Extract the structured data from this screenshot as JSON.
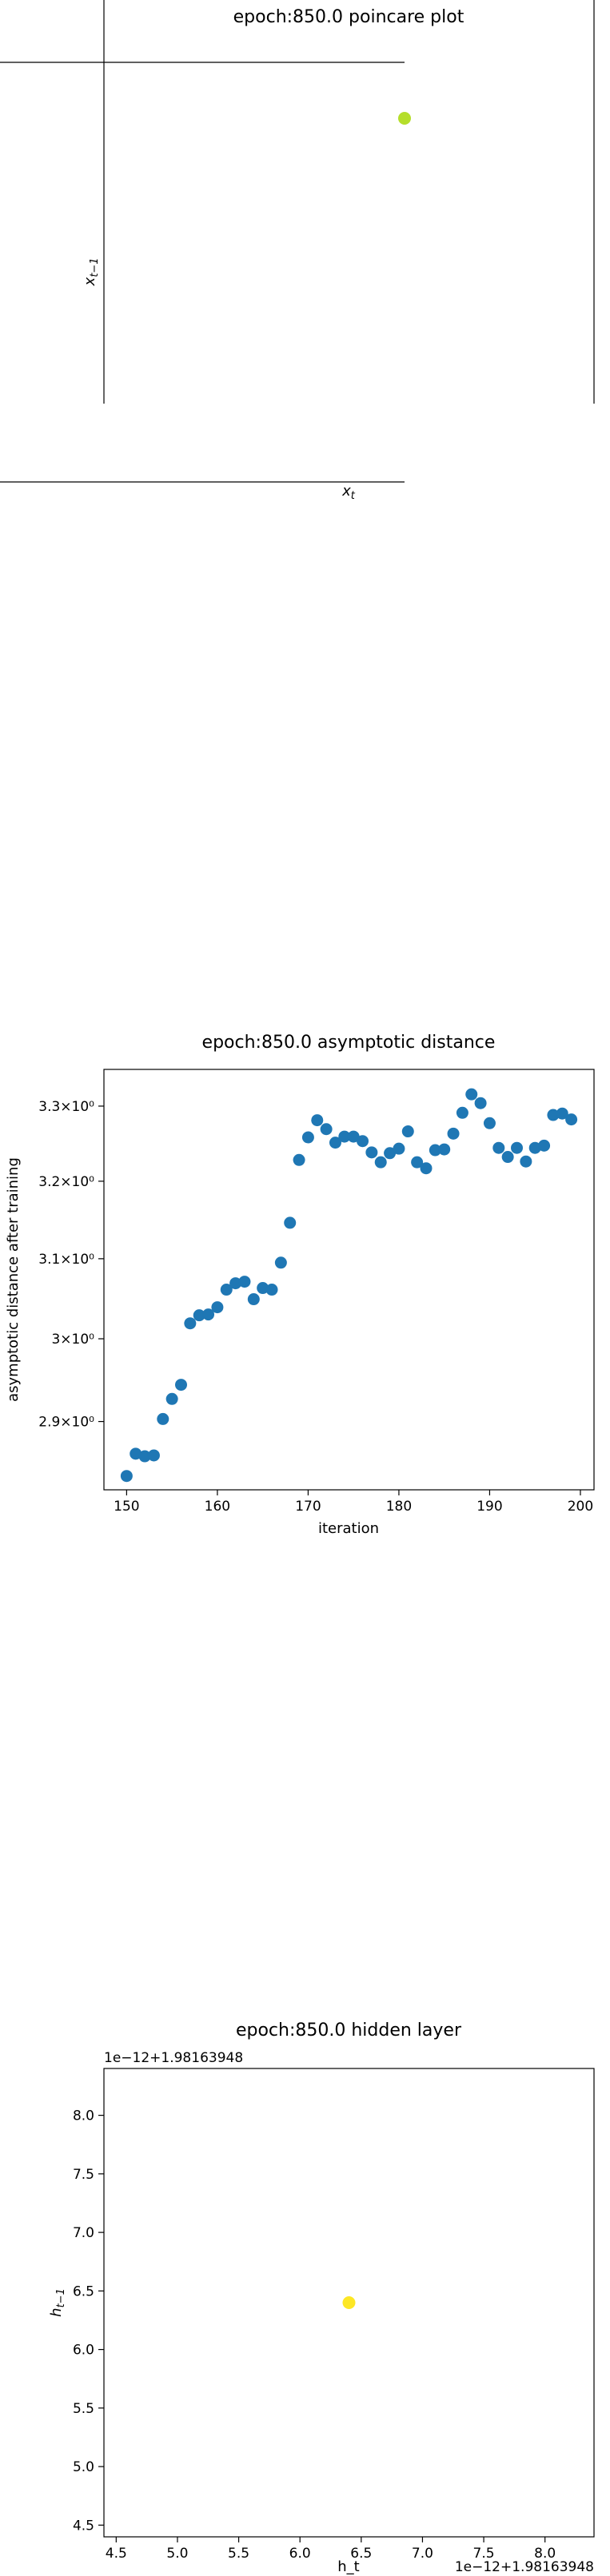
{
  "chart_data": [
    {
      "type": "scatter",
      "title": "epoch:850.0 poincare plot",
      "xlabel": "x_t",
      "ylabel": "x_{t-1}",
      "points": [
        {
          "x": 1.0,
          "y": 1.0
        }
      ],
      "point_color": "#b5de2b",
      "grid": false
    },
    {
      "type": "scatter",
      "title": "epoch:850.0 asymptotic distance",
      "xlabel": "iteration",
      "ylabel": "asymptotic distance after training",
      "yscale": "log",
      "xlim": [
        147.5,
        201.5
      ],
      "ylim": [
        2.82,
        3.35
      ],
      "xticks": [
        150,
        160,
        170,
        180,
        190,
        200
      ],
      "yticks": [
        {
          "value": 2.9,
          "label": "2.9×10⁰"
        },
        {
          "value": 3.0,
          "label": "3×10⁰"
        },
        {
          "value": 3.1,
          "label": "3.1×10⁰"
        },
        {
          "value": 3.2,
          "label": "3.2×10⁰"
        },
        {
          "value": 3.3,
          "label": "3.3×10⁰"
        }
      ],
      "point_color": "#1f77b4",
      "grid": false,
      "x": [
        150,
        151,
        152,
        153,
        154,
        155,
        156,
        157,
        158,
        159,
        160,
        161,
        162,
        163,
        164,
        165,
        166,
        167,
        168,
        169,
        170,
        171,
        172,
        173,
        174,
        175,
        176,
        177,
        178,
        179,
        180,
        181,
        182,
        183,
        184,
        185,
        186,
        187,
        188,
        189,
        190,
        191,
        192,
        193,
        194,
        195,
        196,
        197,
        198,
        199
      ],
      "y": [
        2.836,
        2.862,
        2.859,
        2.86,
        2.903,
        2.927,
        2.944,
        3.019,
        3.029,
        3.03,
        3.039,
        3.061,
        3.069,
        3.071,
        3.049,
        3.063,
        3.061,
        3.095,
        3.146,
        3.228,
        3.258,
        3.281,
        3.269,
        3.251,
        3.259,
        3.259,
        3.253,
        3.238,
        3.225,
        3.237,
        3.243,
        3.266,
        3.225,
        3.217,
        3.241,
        3.242,
        3.263,
        3.291,
        3.316,
        3.304,
        3.277,
        3.244,
        3.232,
        3.244,
        3.226,
        3.244,
        3.247,
        3.288,
        3.29,
        3.282
      ]
    },
    {
      "type": "scatter",
      "title": "epoch:850.0 hidden layer",
      "xlabel": "h_t",
      "ylabel": "h_{t-1}",
      "offset_label": "1e−12+1.98163948",
      "xlim": [
        4.4,
        8.4
      ],
      "ylim": [
        4.4,
        8.4
      ],
      "xticks": [
        "4.5",
        "5.0",
        "5.5",
        "6.0",
        "6.5",
        "7.0",
        "7.5",
        "8.0"
      ],
      "yticks": [
        "4.5",
        "5.0",
        "5.5",
        "6.0",
        "6.5",
        "7.0",
        "7.5",
        "8.0"
      ],
      "points": [
        {
          "x": 6.4,
          "y": 6.4
        }
      ],
      "point_color": "#fde725",
      "grid": false
    }
  ]
}
